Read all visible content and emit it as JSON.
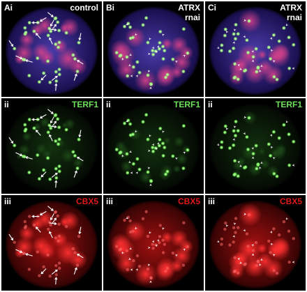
{
  "panels": [
    {
      "id": "Ai",
      "letter": "Ai",
      "marker": "control",
      "marker2": "",
      "channel": "merge",
      "markerColor": "#ffffff"
    },
    {
      "id": "Bi",
      "letter": "Bi",
      "marker": "ATRX",
      "marker2": "rnai",
      "channel": "merge",
      "markerColor": "#ffffff"
    },
    {
      "id": "Ci",
      "letter": "Ci",
      "marker": "ATRX",
      "marker2": "rnai",
      "channel": "merge",
      "markerColor": "#ffffff"
    },
    {
      "id": "Aii",
      "letter": "ii",
      "marker": "TERF1",
      "marker2": "",
      "channel": "green",
      "markerColor": "#6ee05a"
    },
    {
      "id": "Bii",
      "letter": "ii",
      "marker": "TERF1",
      "marker2": "",
      "channel": "green",
      "markerColor": "#6ee05a"
    },
    {
      "id": "Cii",
      "letter": "ii",
      "marker": "TERF1",
      "marker2": "",
      "channel": "green",
      "markerColor": "#6ee05a"
    },
    {
      "id": "Aiii",
      "letter": "iii",
      "marker": "CBX5",
      "marker2": "",
      "channel": "red",
      "markerColor": "#e01818"
    },
    {
      "id": "Biii",
      "letter": "iii",
      "marker": "CBX5",
      "marker2": "",
      "channel": "red",
      "markerColor": "#e01818"
    },
    {
      "id": "Ciii",
      "letter": "iii",
      "marker": "CBX5",
      "marker2": "",
      "channel": "red",
      "markerColor": "#e01818"
    }
  ]
}
